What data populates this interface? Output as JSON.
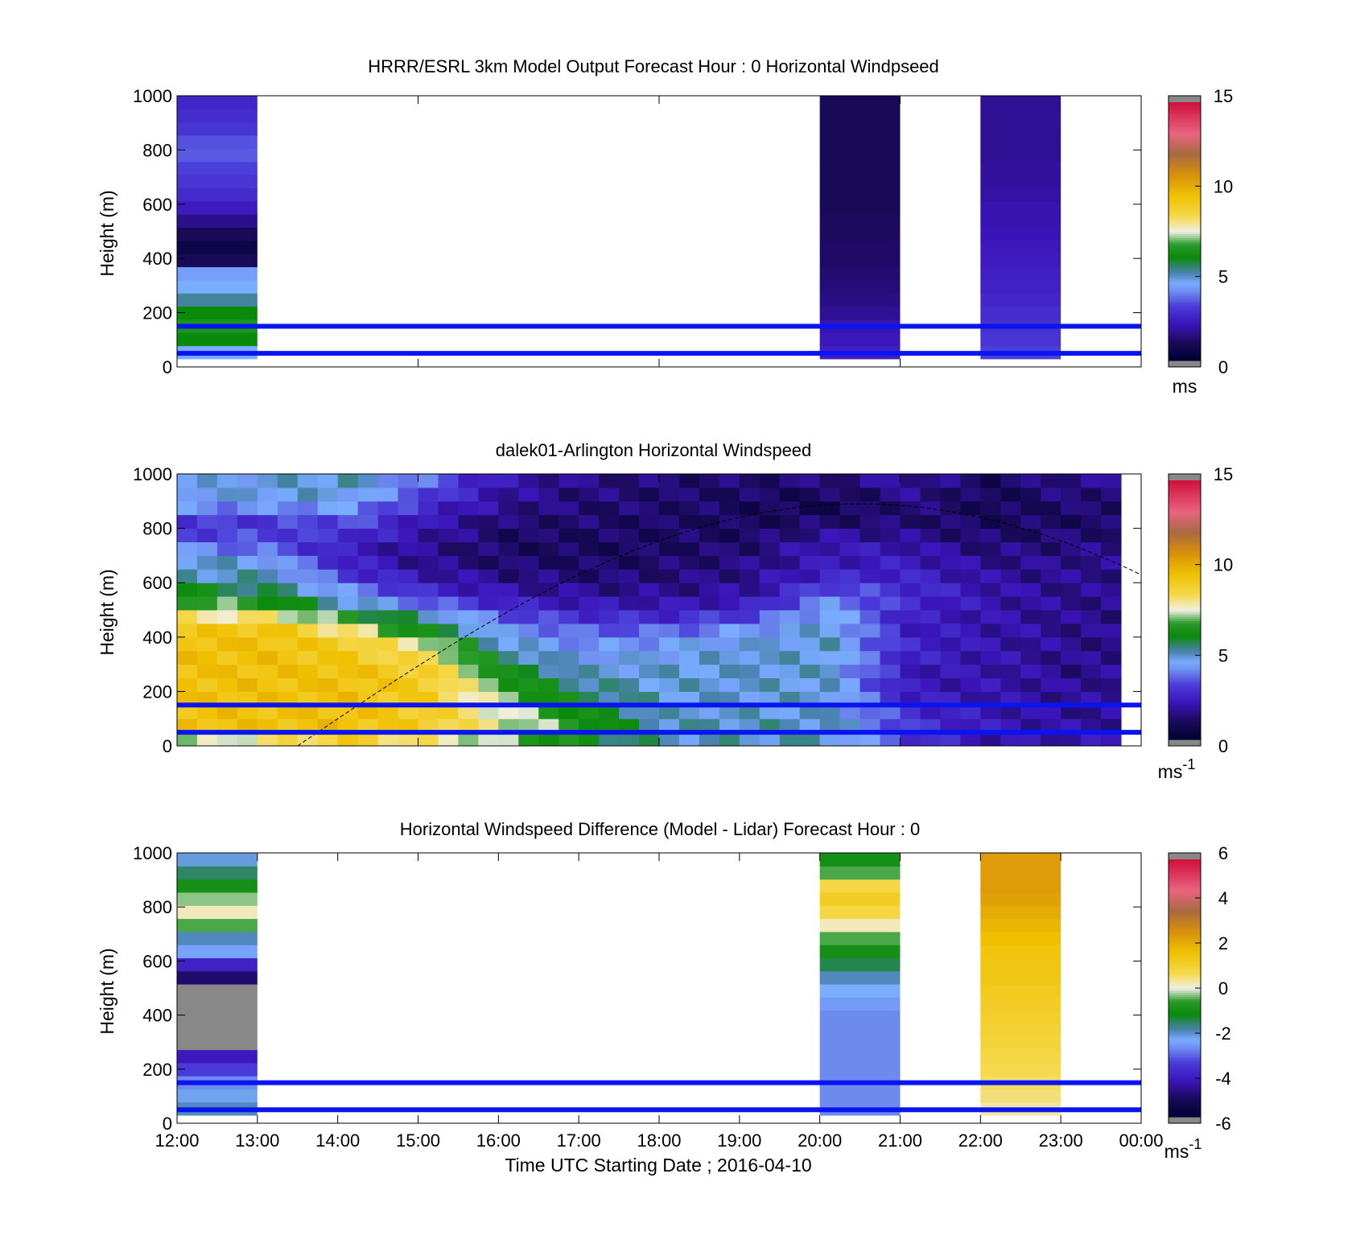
{
  "chart_data": [
    {
      "type": "heatmap",
      "title": "HRRR/ESRL 3km Model Output   Forecast Hour : 0 Horizontal Windpseed",
      "ylabel": "Height (m)",
      "ylim": [
        0,
        1000
      ],
      "yticks": [
        "0",
        "200",
        "400",
        "600",
        "800",
        "1000"
      ],
      "colorbar": {
        "ticks": [
          "0",
          "5",
          "10",
          "15"
        ],
        "range": [
          0,
          15
        ],
        "unit": "ms"
      },
      "x_axis": {
        "range": [
          "12:00",
          "00:00"
        ],
        "tick_labels_shown": false
      },
      "reference_lines_m": [
        50,
        150
      ],
      "columns": [
        {
          "start": "12:00",
          "end": "13:00",
          "bottom_m": 30,
          "values": [
            4.5,
            6.0,
            6.5,
            6.0,
            5.2,
            4.5,
            4.3,
            1.0,
            0.6,
            1.0,
            1.6,
            2.3,
            2.7,
            3.0,
            3.2,
            3.5,
            3.4,
            3.0,
            2.8,
            2.6
          ]
        },
        {
          "start": "20:00",
          "end": "21:00",
          "bottom_m": 30,
          "values": [
            2.4,
            2.2,
            2.0,
            1.7,
            1.5,
            1.4,
            1.3,
            1.2,
            1.2,
            1.1,
            1.1,
            1.0,
            1.0,
            1.0,
            1.0,
            1.0,
            1.0,
            1.0,
            1.0,
            1.0
          ]
        },
        {
          "start": "22:00",
          "end": "23:00",
          "bottom_m": 30,
          "values": [
            3.2,
            3.0,
            2.9,
            2.8,
            2.6,
            2.5,
            2.4,
            2.3,
            2.2,
            2.1,
            2.0,
            2.0,
            1.9,
            1.8,
            1.8,
            1.7,
            1.7,
            1.7,
            1.7,
            1.7
          ]
        }
      ]
    },
    {
      "type": "heatmap",
      "title": "dalek01-Arlington  Horizontal Windspeed",
      "ylabel": "Height (m)",
      "ylim": [
        0,
        1000
      ],
      "yticks": [
        "0",
        "200",
        "400",
        "600",
        "800",
        "1000"
      ],
      "colorbar": {
        "ticks": [
          "0",
          "5",
          "10",
          "15"
        ],
        "range": [
          0,
          15
        ],
        "unit": "ms",
        "unit_sup": "-1"
      },
      "x_axis": {
        "range": [
          "12:00",
          "00:00"
        ],
        "tick_labels_shown": false
      },
      "reference_lines_m": [
        50,
        150
      ],
      "data_end": "23:50",
      "cells_per_hour": 4,
      "height_bins": 20,
      "values_by_hour_bottom_to_top": [
        [
          7,
          9.5,
          9.5,
          9.5,
          9.5,
          9.5,
          9.5,
          9.5,
          9.2,
          8.0,
          7.0,
          6.0,
          5.0,
          5.0,
          4.0,
          3.2,
          3.0,
          4.0,
          4.5,
          4.5
        ],
        [
          8,
          9.5,
          9.5,
          9.5,
          9.5,
          9.5,
          9.5,
          9.5,
          9.4,
          8.0,
          6.5,
          5.5,
          5.0,
          4.5,
          3.6,
          3.2,
          3.0,
          4.0,
          4.7,
          4.7
        ],
        [
          9,
          9.5,
          9.5,
          9.5,
          9.5,
          9.5,
          9.2,
          9.0,
          8.0,
          6.5,
          5.0,
          4.0,
          3.0,
          2.5,
          2.3,
          2.8,
          3.4,
          4.2,
          4.7,
          5.0
        ],
        [
          8,
          9.0,
          9.0,
          9.0,
          9.0,
          8.8,
          8.2,
          7.5,
          6.0,
          5.0,
          3.6,
          2.6,
          2.0,
          1.6,
          1.6,
          1.9,
          2.1,
          2.6,
          3.2,
          3.6
        ],
        [
          7,
          7.5,
          7.4,
          7.0,
          6.6,
          6.0,
          5.4,
          4.8,
          4.2,
          3.4,
          2.5,
          1.9,
          1.5,
          1.2,
          1.1,
          1.1,
          1.3,
          1.6,
          1.8,
          2.0
        ],
        [
          6,
          6.4,
          6.0,
          5.6,
          5.2,
          4.8,
          4.4,
          4.0,
          3.5,
          2.8,
          2.1,
          1.6,
          1.3,
          1.1,
          1.0,
          1.1,
          1.2,
          1.3,
          1.4,
          1.5
        ],
        [
          5,
          5.0,
          4.8,
          4.8,
          4.8,
          4.8,
          4.6,
          4.3,
          3.6,
          2.7,
          2.0,
          1.6,
          1.4,
          1.2,
          1.1,
          1.1,
          1.1,
          1.2,
          1.2,
          1.3
        ],
        [
          5,
          5.0,
          4.8,
          4.8,
          4.8,
          4.8,
          4.8,
          4.6,
          4.2,
          3.2,
          2.3,
          1.8,
          1.6,
          1.5,
          1.3,
          1.1,
          1.0,
          1.0,
          1.1,
          1.2
        ],
        [
          5,
          5.0,
          4.8,
          4.8,
          4.8,
          4.8,
          4.8,
          4.8,
          4.8,
          4.6,
          4.2,
          3.4,
          2.6,
          2.2,
          2.2,
          1.8,
          1.2,
          0.8,
          1.0,
          1.4
        ],
        [
          3,
          3.0,
          2.8,
          2.4,
          2.2,
          2.2,
          2.5,
          2.6,
          2.4,
          2.4,
          2.7,
          2.8,
          2.5,
          2.3,
          2.0,
          1.6,
          1.3,
          1.4,
          1.6,
          1.8
        ],
        [
          2,
          2.2,
          2.1,
          2.0,
          2.0,
          2.0,
          2.0,
          2.0,
          2.0,
          2.0,
          2.0,
          2.0,
          1.8,
          1.6,
          1.4,
          1.2,
          1.0,
          0.9,
          0.9,
          1.0
        ],
        [
          2,
          1.8,
          1.7,
          1.7,
          1.7,
          1.6,
          1.6,
          1.6,
          1.6,
          1.6,
          1.6,
          1.6,
          1.6,
          1.6,
          1.5,
          1.3,
          1.1,
          1.2,
          1.4,
          1.6
        ]
      ]
    },
    {
      "type": "heatmap",
      "title": "Horizontal Windspeed Difference (Model - Lidar) Forecast Hour : 0",
      "xlabel": "Time UTC  Starting Date ; 2016-04-10",
      "ylabel": "Height (m)",
      "ylim": [
        0,
        1000
      ],
      "yticks": [
        "0",
        "200",
        "400",
        "600",
        "800",
        "1000"
      ],
      "xticks": [
        "12:00",
        "13:00",
        "14:00",
        "15:00",
        "16:00",
        "17:00",
        "18:00",
        "19:00",
        "20:00",
        "21:00",
        "22:00",
        "23:00",
        "00:00"
      ],
      "colorbar": {
        "ticks": [
          "-6",
          "-4",
          "-2",
          "0",
          "2",
          "4",
          "6"
        ],
        "range": [
          -6,
          6
        ],
        "unit": "ms",
        "unit_sup": "-1"
      },
      "reference_lines_m": [
        50,
        150
      ],
      "columns": [
        {
          "start": "12:00",
          "end": "13:00",
          "bottom_m": 30,
          "values": [
            -2.0,
            -2.3,
            -2.8,
            -3.5,
            -4.2,
            -6.2,
            -6.2,
            -6.2,
            -6.2,
            -6.2,
            -5.0,
            -4.0,
            -2.5,
            -2.0,
            -0.5,
            0.2,
            -0.3,
            -1.0,
            -1.6,
            -2.2
          ]
        },
        {
          "start": "20:00",
          "end": "21:00",
          "bottom_m": 30,
          "values": [
            -2.8,
            -2.8,
            -2.8,
            -2.8,
            -2.8,
            -2.8,
            -2.8,
            -2.8,
            -2.6,
            -2.4,
            -2.0,
            -1.5,
            -1.0,
            -0.5,
            0.2,
            0.8,
            1.2,
            0.8,
            -0.5,
            -1.0
          ]
        },
        {
          "start": "22:00",
          "end": "23:00",
          "bottom_m": 30,
          "values": [
            0.3,
            0.5,
            0.6,
            0.7,
            0.8,
            0.9,
            1.0,
            1.1,
            1.2,
            1.3,
            1.4,
            1.4,
            1.5,
            1.7,
            1.9,
            2.1,
            2.3,
            2.4,
            2.4,
            2.4
          ]
        }
      ]
    }
  ],
  "colormap_anchors": [
    [
      0.0,
      "#000033"
    ],
    [
      0.07,
      "#1a0a5a"
    ],
    [
      0.14,
      "#3a14b8"
    ],
    [
      0.21,
      "#4a3ad8"
    ],
    [
      0.27,
      "#6f8ff0"
    ],
    [
      0.3,
      "#7aacff"
    ],
    [
      0.34,
      "#4a82b0"
    ],
    [
      0.4,
      "#0a8a0a"
    ],
    [
      0.45,
      "#2a9a2a"
    ],
    [
      0.5,
      "#f0f0e4"
    ],
    [
      0.56,
      "#f5d84a"
    ],
    [
      0.64,
      "#f0c000"
    ],
    [
      0.72,
      "#d8900c"
    ],
    [
      0.8,
      "#a86a40"
    ],
    [
      0.88,
      "#e86480"
    ],
    [
      1.0,
      "#d0103c"
    ]
  ],
  "out_of_range_color": "#888888",
  "reference_line_color": "#0a14f0",
  "dashed_curve_color": "#000000"
}
